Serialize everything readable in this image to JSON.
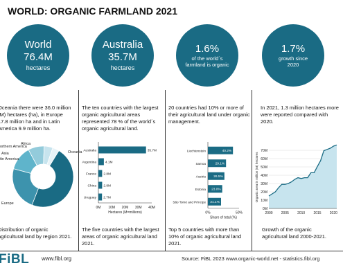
{
  "title": "WORLD: ORGANIC FARMLAND 2021",
  "colors": {
    "accent": "#1a6b84",
    "pie": [
      "#5fb4cb",
      "#93cbdb",
      "#c7e4ee",
      "#e8f3f7",
      "#1a6b84",
      "#3d93ad"
    ]
  },
  "circles": [
    {
      "big": "World",
      "big2": "76.4M",
      "small": "hectares"
    },
    {
      "big": "Australia",
      "big2": "35.7M",
      "small": "hectares"
    },
    {
      "big": "1.6%",
      "small": "of the world´s farmland is organic"
    },
    {
      "big": "1.7%",
      "small": "growth since 2020"
    }
  ],
  "paragraphs": [
    "Oceania there were 36.0 million (M) hectares (ha), in Europe 17.8 million ha and in Latin America 9.9 million ha.",
    "The ten countries with the largest organic agricultural areas represented 78 % of the world´s organic agricultural land.",
    "20 countries had 10% or more of their agricultural land under organic management.",
    "In 2021, 1.3 million hectares more were reported compared with 2020."
  ],
  "captions": [
    "Distribution of organic agricultural land by region 2021.",
    "The five countries with the largest areas of organic agricultural land 2021.",
    "Top 5 countries with more than 10% of organic agricultural land 2021.",
    "Growth of the organic agricultural land 2000-2021."
  ],
  "footer": {
    "logo": "FiBL",
    "url": "www.fibl.org",
    "source": "Source: FiBL 2023 www.organic-world.net - statistics.fibl.org"
  },
  "chart_data": [
    {
      "type": "pie",
      "title": "",
      "labels": [
        "Oceania",
        "Europe",
        "Latin America",
        "Asia",
        "Northern America",
        "Africa"
      ],
      "values": [
        36.0,
        17.8,
        9.9,
        6.5,
        3.5,
        2.7
      ]
    },
    {
      "type": "bar",
      "orientation": "horizontal",
      "categories": [
        "Australia",
        "Argentina",
        "France",
        "China",
        "Uruguay"
      ],
      "values": [
        35.7,
        4.1,
        2.8,
        2.8,
        2.7
      ],
      "data_labels": [
        "35.7M",
        "4.1M",
        "2.8M",
        "2.8M",
        "2.7M"
      ],
      "xlabel": "Hectares (M=millions)",
      "xticks": [
        "0M",
        "10M",
        "20M",
        "30M",
        "40M"
      ],
      "xlim": [
        0,
        40
      ]
    },
    {
      "type": "bar",
      "orientation": "horizontal",
      "categories": [
        "Liechtenstein",
        "Samoa",
        "Austria",
        "Estonia",
        "São Tomé and Príncipe"
      ],
      "values": [
        40.2,
        29.1,
        26.5,
        23.0,
        21.1
      ],
      "data_labels": [
        "40.2%",
        "29.1%",
        "26.5%",
        "23.0%",
        "21.1%"
      ],
      "xlabel": "Share of total (%)",
      "xticks": [
        "0%",
        "50%"
      ],
      "xlim": [
        0,
        50
      ]
    },
    {
      "type": "area",
      "x": [
        2000,
        2001,
        2002,
        2003,
        2004,
        2005,
        2006,
        2007,
        2008,
        2009,
        2010,
        2011,
        2012,
        2013,
        2014,
        2015,
        2016,
        2017,
        2018,
        2019,
        2020,
        2021
      ],
      "y": [
        15.0,
        17.5,
        20.0,
        25.0,
        29.0,
        29.0,
        30.0,
        32.0,
        35.0,
        37.0,
        36.0,
        37.0,
        37.0,
        43.0,
        43.0,
        50.5,
        57.5,
        69.5,
        71.0,
        72.5,
        75.0,
        76.4
      ],
      "ylabel": "Organic area in million (M) hectares",
      "yticks": [
        "0M",
        "10M",
        "20M",
        "30M",
        "40M",
        "50M",
        "60M",
        "70M"
      ],
      "xticks": [
        "2000",
        "2005",
        "2010",
        "2015",
        "2020"
      ],
      "ylim": [
        0,
        75
      ],
      "xlim": [
        2000,
        2021
      ]
    }
  ]
}
